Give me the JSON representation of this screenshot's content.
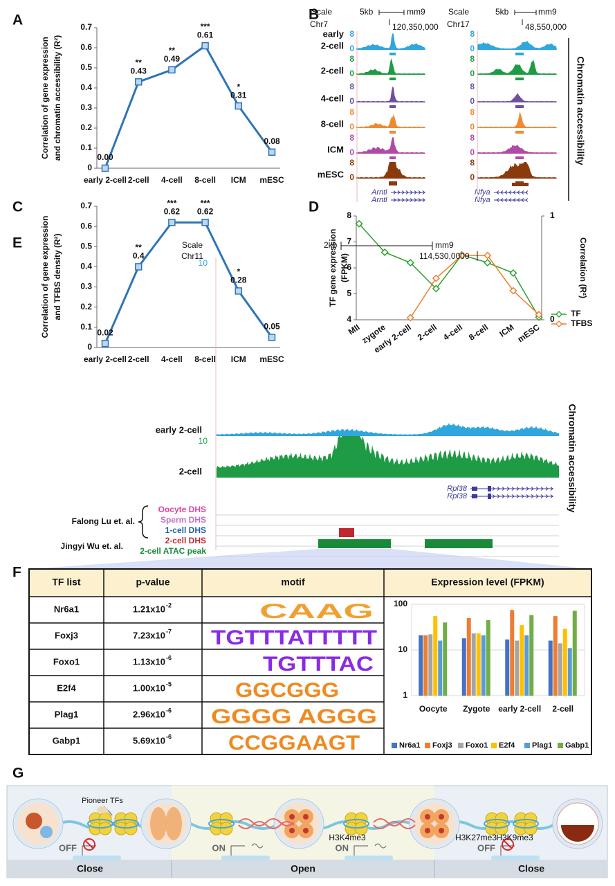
{
  "panel_labels": [
    "A",
    "B",
    "C",
    "D",
    "E",
    "F",
    "G"
  ],
  "chart_data": [
    {
      "type": "line",
      "ylabel": [
        "Correlation of gene expression",
        "and chromatin accessibility (R²)"
      ],
      "categories": [
        "early 2-cell",
        "2-cell",
        "4-cell",
        "8-cell",
        "ICM",
        "mESC"
      ],
      "values": [
        0,
        0.43,
        0.49,
        0.61,
        0.31,
        0.08
      ],
      "value_labels": [
        "0.00",
        "0.43",
        "0.49",
        "0.61",
        "0.31",
        "0.08"
      ],
      "significance": [
        null,
        "**",
        "**",
        "***",
        "*",
        null
      ],
      "color": "#2e75b6",
      "marker": "square",
      "data_labels": true,
      "ylim": [
        0,
        0.7
      ],
      "yticks": [
        0,
        0.1,
        0.2,
        0.3,
        0.4,
        0.5,
        0.6,
        0.7
      ]
    },
    {
      "type": "line",
      "ylabel": [
        "Correlation of gene expression",
        "and TFBS density (R²)"
      ],
      "categories": [
        "early 2-cell",
        "2-cell",
        "4-cell",
        "8-cell",
        "ICM",
        "mESC"
      ],
      "values": [
        0.02,
        0.4,
        0.62,
        0.62,
        0.28,
        0.05
      ],
      "significance": [
        null,
        "**",
        "***",
        "***",
        "*",
        null
      ],
      "color": "#2e75b6",
      "marker": "square",
      "data_labels": true,
      "ylim": [
        0,
        0.7
      ],
      "yticks": [
        0,
        0.1,
        0.2,
        0.3,
        0.4,
        0.5,
        0.6,
        0.7
      ]
    },
    {
      "type": "line",
      "ylabel": [
        "TF gene expression",
        "(FPKM)"
      ],
      "y2label": "Correlation (R²)",
      "categories": [
        "MII",
        "zygote",
        "early 2-cell",
        "2-cell",
        "4-cell",
        "8-cell",
        "ICM",
        "mESC"
      ],
      "series": [
        {
          "name": "TF",
          "color": "#2ca02c",
          "values": [
            7.7,
            6.6,
            6.2,
            5.2,
            6.5,
            6.2,
            5.8,
            4.1
          ]
        },
        {
          "name": "TFBS",
          "color": "#ed7d31",
          "axis": "y2",
          "values": [
            null,
            null,
            0.02,
            0.4,
            0.62,
            0.62,
            0.28,
            0.05
          ]
        }
      ],
      "marker": "diamond",
      "legend": "right",
      "ylim": [
        4,
        8
      ],
      "yticks": [
        4,
        5,
        6,
        7,
        8
      ],
      "y2lim": [
        0,
        1
      ],
      "y2ticks": [
        0,
        1
      ]
    },
    {
      "type": "bar",
      "categories": [
        "Oocyte",
        "Zygote",
        "early 2-cell",
        "2-cell"
      ],
      "series": [
        {
          "name": "Nr6a1",
          "color": "#4472c4",
          "values": [
            21,
            18,
            17,
            16
          ]
        },
        {
          "name": "Foxj3",
          "color": "#ed7d31",
          "values": [
            21,
            50,
            75,
            55
          ]
        },
        {
          "name": "Foxo1",
          "color": "#a5a5a5",
          "values": [
            22,
            23,
            16,
            14
          ]
        },
        {
          "name": "E2f4",
          "color": "#ffc000",
          "values": [
            55,
            23,
            35,
            29
          ]
        },
        {
          "name": "Plag1",
          "color": "#5b9bd5",
          "values": [
            16,
            21,
            21,
            11
          ]
        },
        {
          "name": "Gabp1",
          "color": "#70ad47",
          "values": [
            40,
            45,
            58,
            72
          ]
        }
      ],
      "log_scale": true,
      "grid": true,
      "legend": "bottom",
      "ylim": [
        1,
        100
      ],
      "yticks": [
        1,
        10,
        100
      ]
    }
  ],
  "panel_b": {
    "loci": [
      {
        "scale": "Scale",
        "bar": "5kb",
        "assembly": "mm9",
        "chrom": "Chr7",
        "position": "120,350,000",
        "genes": [
          "Arntl",
          "Arntl"
        ]
      },
      {
        "scale": "Scale",
        "bar": "5kb",
        "assembly": "mm9",
        "chrom": "Chr17",
        "position": "48,550,000",
        "genes": [
          "Nfya",
          "Nfya"
        ]
      }
    ],
    "tracks": [
      {
        "label": [
          "early",
          "2-cell"
        ],
        "max": 8,
        "min": 0,
        "color": "#2fa6dc"
      },
      {
        "label": [
          "2-cell"
        ],
        "max": 8,
        "min": 0,
        "color": "#1f9a45"
      },
      {
        "label": [
          "4-cell"
        ],
        "max": 8,
        "min": 0,
        "color": "#6e4fa0"
      },
      {
        "label": [
          "8-cell"
        ],
        "max": 8,
        "min": 0,
        "color": "#ef8a32"
      },
      {
        "label": [
          "ICM"
        ],
        "max": 8,
        "min": 0,
        "color": "#b04aa5"
      },
      {
        "label": [
          "mESC"
        ],
        "max": 8,
        "min": 0,
        "color": "#8b3a0e"
      }
    ],
    "side_label": "Chromatin accessibility"
  },
  "panel_e": {
    "scale": "Scale",
    "bar": "2kb",
    "assembly": "mm9",
    "chrom": "Chr11",
    "position": "114,530,0000",
    "tracks": [
      {
        "label": "early 2-cell",
        "max": 10,
        "color": "#2fa6dc"
      },
      {
        "label": "2-cell",
        "max": 10,
        "color": "#1f9a45"
      }
    ],
    "genes": [
      "Rpl38",
      "Rpl38"
    ],
    "side_label": "Chromatin accessibility",
    "studies": [
      "Falong Lu et. al.",
      "Jingyi Wu et. al."
    ],
    "peak_tracks": [
      {
        "label": "Oocyte DHS",
        "color": "#e0409a"
      },
      {
        "label": "Sperm DHS",
        "color": "#c36fc4"
      },
      {
        "label": "1-cell DHS",
        "color": "#1f5fa8"
      },
      {
        "label": "2-cell DHS",
        "color": "#c0282e"
      },
      {
        "label": "2-cell ATAC peak",
        "color": "#1a8a3a"
      }
    ]
  },
  "panel_f": {
    "headers": [
      "TF list",
      "p-value",
      "motif",
      "Expression level (FPKM)"
    ],
    "rows": [
      {
        "tf": "Nr6a1",
        "p_value": "1.21x10",
        "p_exponent": "-2",
        "motif": "CAAG"
      },
      {
        "tf": "Foxj3",
        "p_value": "7.23x10",
        "p_exponent": "-7",
        "motif": "TGTTTATTTTT"
      },
      {
        "tf": "Foxo1",
        "p_value": "1.13x10",
        "p_exponent": "-6",
        "motif": "TGTTTAC"
      },
      {
        "tf": "E2f4",
        "p_value": "1.00x10",
        "p_exponent": "-5",
        "motif": "GGCGGG"
      },
      {
        "tf": "Plag1",
        "p_value": "2.96x10",
        "p_exponent": "-6",
        "motif": "GGGG AGGG"
      },
      {
        "tf": "Gabp1",
        "p_value": "5.69x10",
        "p_exponent": "-6",
        "motif": "CCGGAAGT"
      }
    ]
  },
  "panel_g": {
    "pioneer_label": "Pioneer TFs",
    "switches": [
      "OFF",
      "ON",
      "ON",
      "OFF"
    ],
    "marks": [
      "H3K4me3",
      "H3K27me3",
      "H3K9me3"
    ],
    "phases": [
      "Close",
      "Open",
      "Close"
    ]
  }
}
